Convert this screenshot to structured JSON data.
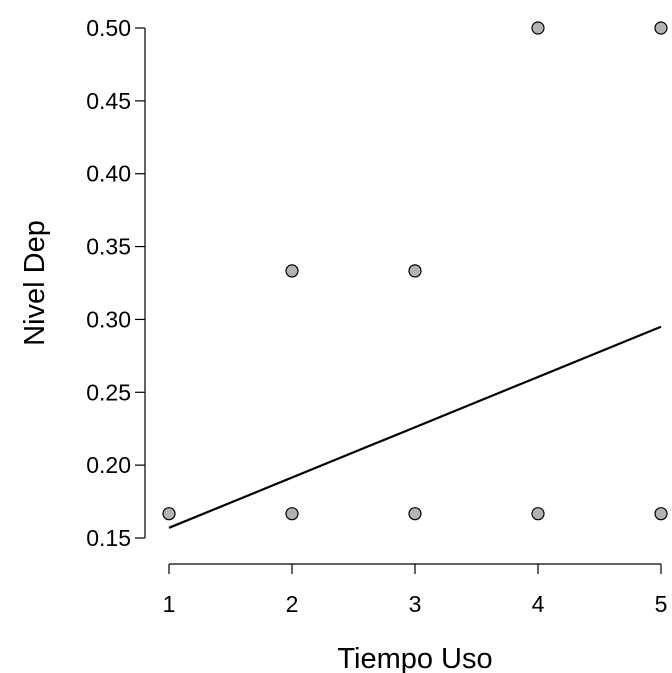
{
  "chart_data": {
    "type": "scatter",
    "title": "",
    "xlabel": "Tiempo Uso",
    "ylabel": "Nivel Dep",
    "xlim": [
      1,
      5
    ],
    "ylim": [
      0.15,
      0.5
    ],
    "xticks": [
      1,
      2,
      3,
      4,
      5
    ],
    "xtick_labels": [
      "1",
      "2",
      "3",
      "4",
      "5"
    ],
    "yticks": [
      0.15,
      0.2,
      0.25,
      0.3,
      0.35,
      0.4,
      0.45,
      0.5
    ],
    "ytick_labels": [
      "0.15",
      "0.20",
      "0.25",
      "0.30",
      "0.35",
      "0.40",
      "0.45",
      "0.50"
    ],
    "grid": false,
    "points": [
      {
        "x": 1,
        "y": 0.1667
      },
      {
        "x": 2,
        "y": 0.1667
      },
      {
        "x": 2,
        "y": 0.3333
      },
      {
        "x": 3,
        "y": 0.1667
      },
      {
        "x": 3,
        "y": 0.3333
      },
      {
        "x": 4,
        "y": 0.1667
      },
      {
        "x": 4,
        "y": 0.5
      },
      {
        "x": 5,
        "y": 0.1667
      },
      {
        "x": 5,
        "y": 0.5
      }
    ],
    "fit_line": {
      "x": [
        1,
        5
      ],
      "y": [
        0.157,
        0.295
      ]
    },
    "colors": {
      "point_fill": "#b3b3b3",
      "point_stroke": "#000000",
      "line": "#000000"
    }
  }
}
